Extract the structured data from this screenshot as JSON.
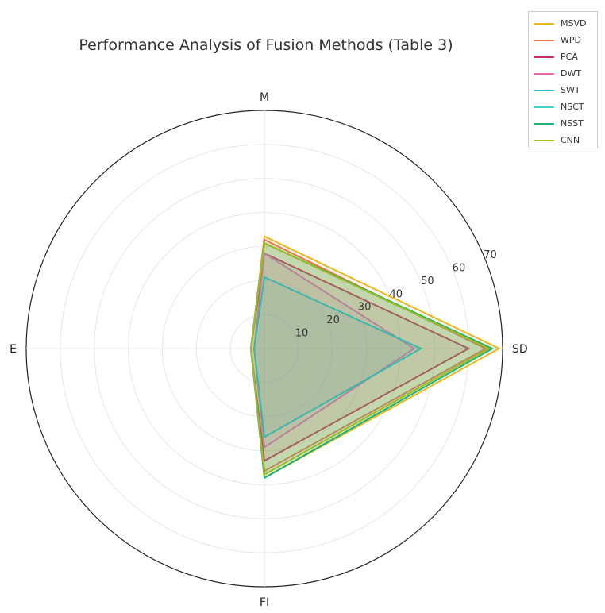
{
  "chart_data": {
    "type": "radar",
    "title": "Performance Analysis of Fusion Methods (Table 3)",
    "axes": [
      "M",
      "SD",
      "FI",
      "E"
    ],
    "rlim": [
      0,
      70
    ],
    "rticks": [
      10,
      20,
      30,
      40,
      50,
      60,
      70
    ],
    "rtick_labels": [
      "10",
      "20",
      "30",
      "40",
      "50",
      "60",
      "70"
    ],
    "grid": true,
    "legend_position": "top-right",
    "series": [
      {
        "name": "MSVD",
        "color": "#e8b626",
        "values": [
          33,
          69,
          38,
          4
        ]
      },
      {
        "name": "WPD",
        "color": "#e8734a",
        "values": [
          32,
          65,
          36,
          4
        ]
      },
      {
        "name": "PCA",
        "color": "#c8335a",
        "values": [
          28,
          60,
          33,
          4
        ]
      },
      {
        "name": "DWT",
        "color": "#e36ab0",
        "values": [
          28,
          44,
          29,
          3
        ]
      },
      {
        "name": "SWT",
        "color": "#2fb6c9",
        "values": [
          21,
          46,
          26,
          3
        ]
      },
      {
        "name": "NSCT",
        "color": "#41d0c2",
        "values": [
          31,
          66,
          37,
          4
        ]
      },
      {
        "name": "NSST",
        "color": "#20b073",
        "values": [
          31,
          67,
          38,
          4
        ]
      },
      {
        "name": "CNN",
        "color": "#9fbd22",
        "values": [
          31,
          66,
          37,
          4
        ]
      }
    ]
  }
}
